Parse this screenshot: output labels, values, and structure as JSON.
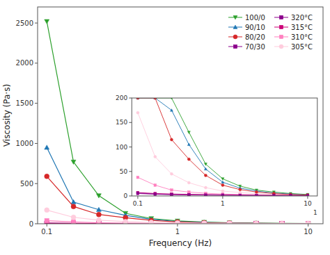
{
  "chart_data": [
    {
      "type": "line",
      "xlabel": "Frequency (Hz)",
      "ylabel": "Viscosity (Pa·s)",
      "x": [
        0.1,
        0.16,
        0.25,
        0.4,
        0.63,
        1.0,
        1.6,
        2.5,
        4.0,
        6.3,
        10.0
      ],
      "log": "x",
      "xlim": [
        0.085,
        13
      ],
      "ylim": [
        0,
        2700
      ],
      "xticks": [
        0.1,
        1,
        10
      ],
      "yticks": [
        0,
        500,
        1000,
        1500,
        2000,
        2500
      ],
      "grid": false,
      "legend": "upper right",
      "series": [
        {
          "name": "100/0",
          "color": "#2ca02c",
          "marker": "triangle-down",
          "values": [
            2520,
            770,
            350,
            130,
            65,
            35,
            20,
            12,
            8,
            5,
            3
          ]
        },
        {
          "name": "90/10",
          "color": "#1f77b4",
          "marker": "triangle-up",
          "values": [
            950,
            270,
            175,
            105,
            55,
            28,
            16,
            10,
            6,
            4,
            2
          ]
        },
        {
          "name": "80/20",
          "color": "#d62728",
          "marker": "circle",
          "values": [
            590,
            215,
            115,
            75,
            42,
            22,
            13,
            8,
            5,
            3,
            2
          ]
        },
        {
          "name": "70/30",
          "color": "#8B008B",
          "marker": "square",
          "values": [
            6,
            4,
            3,
            2.5,
            2,
            1.8,
            1.5,
            1.3,
            1.1,
            1.0,
            0.9
          ]
        },
        {
          "name": "320°C",
          "color": "#8B008B",
          "marker": "square",
          "values": [
            5,
            3.5,
            2.8,
            2.3,
            2.0,
            1.7,
            1.5,
            1.3,
            1.1,
            1.0,
            0.9
          ]
        },
        {
          "name": "315°C",
          "color": "#cc0077",
          "marker": "square",
          "values": [
            7,
            5,
            4,
            3.2,
            2.8,
            2.4,
            2.0,
            1.8,
            1.5,
            1.3,
            1.1
          ]
        },
        {
          "name": "310°C",
          "color": "#ff80bf",
          "marker": "square",
          "values": [
            38,
            22,
            12,
            8,
            5.5,
            4,
            3,
            2.5,
            2,
            1.8,
            1.5
          ]
        },
        {
          "name": "305°C",
          "color": "#ffccdd",
          "marker": "circle",
          "values": [
            170,
            80,
            45,
            27,
            17,
            10,
            7,
            5,
            3.5,
            2.5,
            2.0
          ]
        }
      ]
    },
    {
      "type": "line",
      "x": [
        0.1,
        0.16,
        0.25,
        0.4,
        0.63,
        1.0,
        1.6,
        2.5,
        4.0,
        6.3,
        10.0
      ],
      "log": "x",
      "xlim": [
        0.085,
        13
      ],
      "ylim": [
        0,
        200
      ],
      "xticks": [
        0.1,
        1,
        10
      ],
      "yticks": [
        0,
        50,
        100,
        150,
        200
      ],
      "grid": false,
      "annotations": [
        "1"
      ],
      "series": [
        {
          "color": "#8B008B",
          "marker": "square",
          "values": [
            5,
            3.5,
            2.8,
            2.3,
            2.0,
            1.7,
            1.5,
            1.3,
            1.1,
            1.0,
            0.9
          ]
        },
        {
          "color": "#cc0077",
          "marker": "square",
          "values": [
            7,
            5,
            4,
            3.2,
            2.8,
            2.4,
            2.0,
            1.8,
            1.5,
            1.3,
            1.1
          ]
        },
        {
          "color": "#ff80bf",
          "marker": "square",
          "values": [
            38,
            22,
            12,
            8,
            5.5,
            4,
            3,
            2.5,
            2,
            1.8,
            1.5
          ]
        },
        {
          "color": "#ffccdd",
          "marker": "circle",
          "values": [
            170,
            80,
            45,
            27,
            17,
            10,
            7,
            5,
            3.5,
            2.5,
            2.0
          ]
        },
        {
          "color": "#2ca02c",
          "marker": "triangle-down",
          "values": [
            200,
            200,
            200,
            130,
            65,
            35,
            20,
            12,
            8,
            5,
            3
          ]
        },
        {
          "color": "#1f77b4",
          "marker": "triangle-up",
          "values": [
            200,
            200,
            175,
            105,
            55,
            28,
            16,
            10,
            6,
            4,
            2
          ]
        },
        {
          "color": "#d62728",
          "marker": "circle",
          "values": [
            200,
            200,
            115,
            75,
            42,
            22,
            13,
            8,
            5,
            3,
            2
          ]
        },
        {
          "color": "#8B008B",
          "marker": "square",
          "values": [
            6,
            4,
            3,
            2.5,
            2,
            1.8,
            1.5,
            1.3,
            1.1,
            1.0,
            0.9
          ]
        }
      ]
    }
  ]
}
